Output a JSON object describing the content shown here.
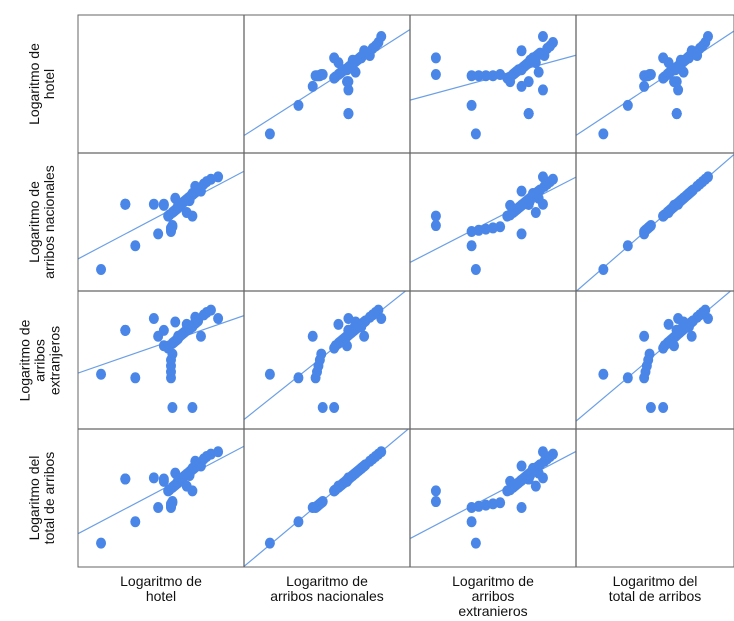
{
  "chart_data": {
    "type": "scatter",
    "subtype": "scatterplot-matrix",
    "title": "",
    "variables": [
      {
        "id": "hotel",
        "label_lines": [
          "Logaritmo de",
          "hotel"
        ],
        "row_label_lines": [
          "Logaritmo de",
          "hotel"
        ]
      },
      {
        "id": "nacionales",
        "label_lines": [
          "Logaritmo de",
          "arribos nacionales"
        ],
        "row_label_lines": [
          "Logaritmo de",
          "arribos nacionales"
        ]
      },
      {
        "id": "extranjeros",
        "label_lines": [
          "Logaritmo de",
          "arribos",
          "extranieros"
        ],
        "row_label_lines": [
          "Logaritmo de",
          "arribos",
          "extranjeros"
        ]
      },
      {
        "id": "total",
        "label_lines": [
          "Logaritmo del",
          "total de arribos"
        ],
        "row_label_lines": [
          "Logaritmo del",
          "total de arribos"
        ]
      }
    ],
    "axis_range": [
      0,
      1
    ],
    "grid": false,
    "fit_lines": true,
    "point_color": "#4a86e8",
    "line_color": "#6b9fe6",
    "frame_color": "#666666",
    "observations": {
      "hotel": [
        0.08,
        0.25,
        0.25,
        0.25,
        0.32,
        0.45,
        0.48,
        0.52,
        0.55,
        0.56,
        0.58,
        0.59,
        0.6,
        0.61,
        0.62,
        0.62,
        0.63,
        0.64,
        0.65,
        0.66,
        0.67,
        0.68,
        0.69,
        0.7,
        0.71,
        0.72,
        0.73,
        0.74,
        0.75,
        0.76,
        0.6,
        0.7,
        0.72,
        0.62,
        0.68,
        0.74,
        0.8,
        0.85,
        0.82,
        0.52,
        0.9,
        0.57,
        0.57,
        0.57,
        0.57,
        0.58,
        0.58,
        0.72,
        0.78
      ],
      "nacionales": [
        0.1,
        0.65,
        0.65,
        0.65,
        0.3,
        0.65,
        0.4,
        0.65,
        0.55,
        0.56,
        0.58,
        0.59,
        0.6,
        0.61,
        0.62,
        0.63,
        0.64,
        0.65,
        0.66,
        0.67,
        0.68,
        0.69,
        0.7,
        0.71,
        0.72,
        0.73,
        0.74,
        0.75,
        0.76,
        0.77,
        0.7,
        0.68,
        0.74,
        0.64,
        0.58,
        0.8,
        0.82,
        0.86,
        0.84,
        0.64,
        0.88,
        0.42,
        0.43,
        0.44,
        0.45,
        0.46,
        0.47,
        0.55,
        0.76
      ],
      "extranjeros": [
        0.38,
        0.75,
        0.75,
        0.75,
        0.35,
        0.85,
        0.7,
        0.75,
        0.6,
        0.62,
        0.64,
        0.65,
        0.66,
        0.67,
        0.68,
        0.69,
        0.7,
        0.71,
        0.72,
        0.73,
        0.74,
        0.75,
        0.76,
        0.77,
        0.78,
        0.79,
        0.8,
        0.81,
        0.82,
        0.83,
        0.82,
        0.76,
        0.78,
        0.7,
        0.8,
        0.86,
        0.88,
        0.92,
        0.9,
        0.62,
        0.85,
        0.35,
        0.4,
        0.45,
        0.5,
        0.55,
        0.1,
        0.1,
        0.7
      ],
      "total": [
        0.12,
        0.66,
        0.66,
        0.66,
        0.3,
        0.67,
        0.42,
        0.66,
        0.56,
        0.57,
        0.59,
        0.6,
        0.61,
        0.62,
        0.63,
        0.64,
        0.65,
        0.66,
        0.67,
        0.68,
        0.69,
        0.7,
        0.71,
        0.72,
        0.73,
        0.74,
        0.75,
        0.76,
        0.77,
        0.78,
        0.71,
        0.69,
        0.75,
        0.65,
        0.6,
        0.81,
        0.83,
        0.87,
        0.85,
        0.64,
        0.89,
        0.42,
        0.43,
        0.44,
        0.45,
        0.46,
        0.47,
        0.56,
        0.77
      ]
    }
  }
}
